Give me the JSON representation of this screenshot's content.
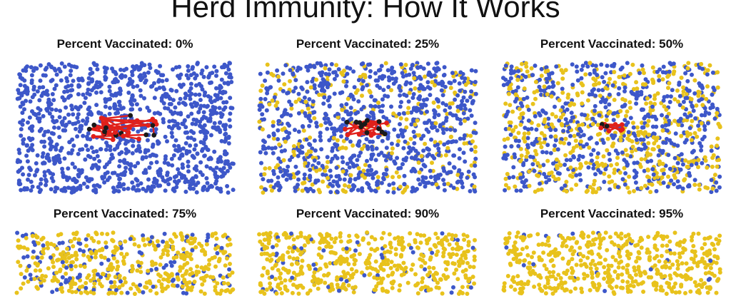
{
  "title": "Herd Immunity: How It Works",
  "colors": {
    "susceptible": "#3d57c9",
    "vaccinated": "#e8c21c",
    "infected_node": "#1a1a1a",
    "infection_link": "#e0201b"
  },
  "panels": [
    {
      "label": "Percent Vaccinated: 0%",
      "percent_vaccinated": 0,
      "infected_cluster": "large"
    },
    {
      "label": "Percent Vaccinated: 25%",
      "percent_vaccinated": 25,
      "infected_cluster": "medium"
    },
    {
      "label": "Percent Vaccinated: 50%",
      "percent_vaccinated": 50,
      "infected_cluster": "small"
    },
    {
      "label": "Percent Vaccinated: 75%",
      "percent_vaccinated": 75,
      "infected_cluster": "none"
    },
    {
      "label": "Percent Vaccinated: 90%",
      "percent_vaccinated": 90,
      "infected_cluster": "none"
    },
    {
      "label": "Percent Vaccinated: 95%",
      "percent_vaccinated": 95,
      "infected_cluster": "none"
    }
  ]
}
